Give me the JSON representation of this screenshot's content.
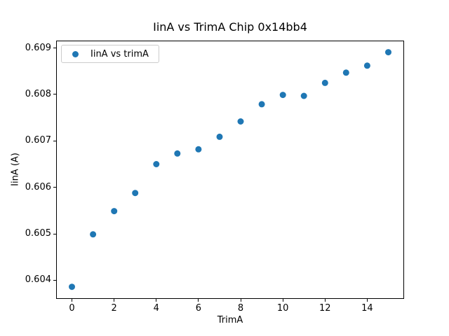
{
  "figure": {
    "title": "IinA vs TrimA Chip 0x14bb4",
    "xlabel": "TrimA",
    "ylabel": "IinA (A)",
    "legend": {
      "label": "IinA vs trimA",
      "position": "upper left"
    }
  },
  "chart_data": {
    "type": "scatter",
    "title": "IinA vs TrimA Chip 0x14bb4",
    "xlabel": "TrimA",
    "ylabel": "IinA (A)",
    "grid": false,
    "legend_position": "upper left",
    "xlim": [
      -0.75,
      15.75
    ],
    "ylim": [
      0.6036,
      0.60916
    ],
    "xticks": {
      "values": [
        0,
        2,
        4,
        6,
        8,
        10,
        12,
        14
      ],
      "labels": [
        "0",
        "2",
        "4",
        "6",
        "8",
        "10",
        "12",
        "14"
      ]
    },
    "yticks": {
      "values": [
        0.604,
        0.605,
        0.606,
        0.607,
        0.608,
        0.609
      ],
      "labels": [
        "0.604",
        "0.605",
        "0.606",
        "0.607",
        "0.608",
        "0.609"
      ]
    },
    "series": [
      {
        "name": "IinA vs trimA",
        "color": "#1f77b4",
        "marker": "circle",
        "x": [
          0,
          1,
          2,
          3,
          4,
          5,
          6,
          7,
          8,
          9,
          10,
          11,
          12,
          13,
          14,
          15
        ],
        "y": [
          0.60386,
          0.60499,
          0.60549,
          0.60588,
          0.6065,
          0.60673,
          0.60682,
          0.60709,
          0.60742,
          0.60779,
          0.60799,
          0.60797,
          0.60825,
          0.60847,
          0.60862,
          0.60891
        ]
      }
    ]
  }
}
